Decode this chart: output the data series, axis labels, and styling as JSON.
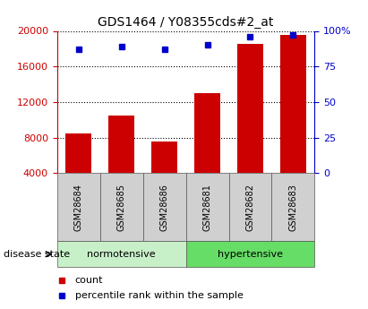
{
  "title": "GDS1464 / Y08355cds#2_at",
  "samples": [
    "GSM28684",
    "GSM28685",
    "GSM28686",
    "GSM28681",
    "GSM28682",
    "GSM28683"
  ],
  "counts": [
    8500,
    10500,
    7500,
    13000,
    18500,
    19500
  ],
  "percentiles": [
    87,
    89,
    87,
    90,
    96,
    97
  ],
  "bar_color": "#cc0000",
  "marker_color": "#0000cc",
  "left_ylim": [
    4000,
    20000
  ],
  "left_yticks": [
    4000,
    8000,
    12000,
    16000,
    20000
  ],
  "right_ylim": [
    0,
    100
  ],
  "right_yticks": [
    0,
    25,
    50,
    75,
    100
  ],
  "left_tick_color": "#cc0000",
  "right_tick_color": "#0000cc",
  "normotensive_label": "normotensive",
  "hypertensive_label": "hypertensive",
  "disease_state_label": "disease state",
  "legend_count": "count",
  "legend_percentile": "percentile rank within the sample",
  "norm_bg": "#c8f0c8",
  "hyper_bg": "#66dd66",
  "sample_bg": "#d0d0d0",
  "title_fontsize": 10,
  "tick_fontsize": 8,
  "sample_fontsize": 7,
  "group_fontsize": 8,
  "legend_fontsize": 8
}
